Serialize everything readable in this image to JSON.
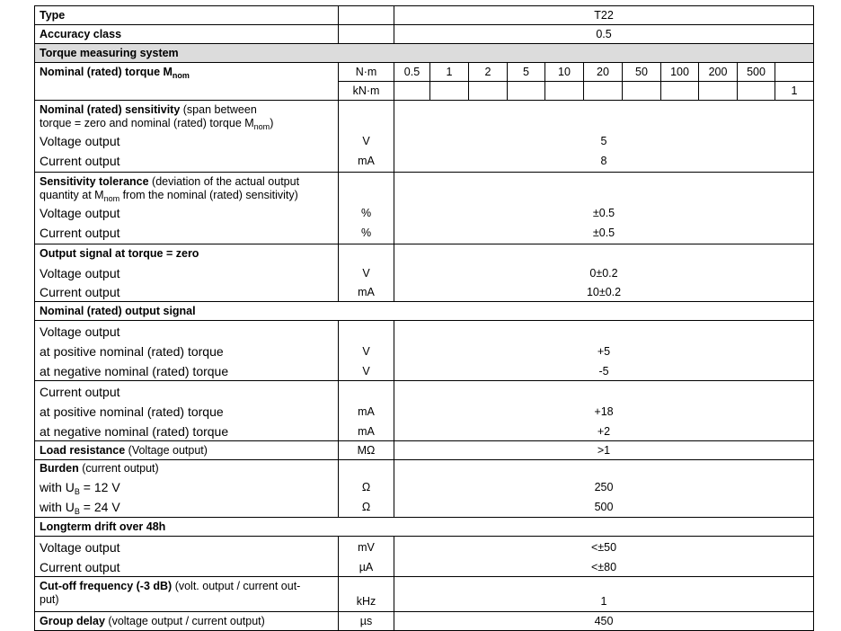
{
  "type_row": {
    "label": "Type",
    "value": "T22"
  },
  "accuracy_row": {
    "label": "Accuracy class",
    "value": "0.5"
  },
  "torque_system_header": "Torque measuring system",
  "nominal_torque": {
    "label": "Nominal (rated) torque M",
    "sub": "nom",
    "unit_nm": "N·m",
    "unit_knm": "kN·m",
    "nm_values": [
      "0.5",
      "1",
      "2",
      "5",
      "10",
      "20",
      "50",
      "100",
      "200",
      "500",
      ""
    ],
    "knm_values": [
      "",
      "",
      "",
      "",
      "",
      "",
      "",
      "",
      "",
      "",
      "1"
    ]
  },
  "sensitivity": {
    "title_bold": "Nominal (rated) sensitivity",
    "title_rest1": " (span between",
    "title_line2": "torque = zero and nominal (rated) torque M",
    "title_sub": "nom",
    "title_end": ")",
    "rows": [
      {
        "label": "Voltage output",
        "unit": "V",
        "value": "5"
      },
      {
        "label": "Current output",
        "unit": "mA",
        "value": "8"
      }
    ]
  },
  "tolerance": {
    "title_bold": "Sensitivity tolerance",
    "title_rest1": " (deviation of the actual output",
    "title_line2a": "quantity at M",
    "title_sub": "nom",
    "title_line2b": " from the nominal (rated) sensitivity)",
    "rows": [
      {
        "label": "Voltage output",
        "unit": "%",
        "value": "±0.5"
      },
      {
        "label": "Current output",
        "unit": "%",
        "value": "±0.5"
      }
    ]
  },
  "zero_signal": {
    "title": "Output signal at torque = zero",
    "rows": [
      {
        "label": "Voltage output",
        "unit": "V",
        "value": "0±0.2"
      },
      {
        "label": "Current output",
        "unit": "mA",
        "value": "10±0.2"
      }
    ]
  },
  "nominal_output_header": "Nominal (rated) output signal",
  "voltage_block": {
    "title": "Voltage output",
    "rows": [
      {
        "label": "at positive nominal (rated) torque",
        "unit": "V",
        "value": "+5"
      },
      {
        "label": "at negative nominal (rated) torque",
        "unit": "V",
        "value": "-5"
      }
    ]
  },
  "current_block": {
    "title": "Current output",
    "rows": [
      {
        "label": "at positive nominal (rated) torque",
        "unit": "mA",
        "value": "+18"
      },
      {
        "label": "at negative nominal (rated) torque",
        "unit": "mA",
        "value": "+2"
      }
    ]
  },
  "load_resistance": {
    "title_bold": "Load resistance",
    "title_rest": " (Voltage output)",
    "unit": "MΩ",
    "value": ">1"
  },
  "burden": {
    "title_bold": "Burden",
    "title_rest": " (current output)",
    "rows": [
      {
        "label_a": "with U",
        "sub": "B",
        "label_b": " = 12 V",
        "unit": "Ω",
        "value": "250"
      },
      {
        "label_a": "with U",
        "sub": "B",
        "label_b": " = 24 V",
        "unit": "Ω",
        "value": "500"
      }
    ]
  },
  "drift_header": "Longterm drift over 48h",
  "drift": {
    "rows": [
      {
        "label": "Voltage output",
        "unit": "mV",
        "value": "<±50"
      },
      {
        "label": "Current output",
        "unit": "µA",
        "value": "<±80"
      }
    ]
  },
  "cutoff": {
    "title_bold": "Cut-off frequency (-3 dB)",
    "title_rest": " (volt. output / current out-",
    "title_line2": "put)",
    "unit": "kHz",
    "value": "1"
  },
  "group_delay": {
    "title_bold": "Group delay",
    "title_rest": " (voltage output / current output)",
    "unit": "µs",
    "value": "450"
  },
  "colors": {
    "header_background": "#dcdcdc",
    "border": "#000000"
  }
}
